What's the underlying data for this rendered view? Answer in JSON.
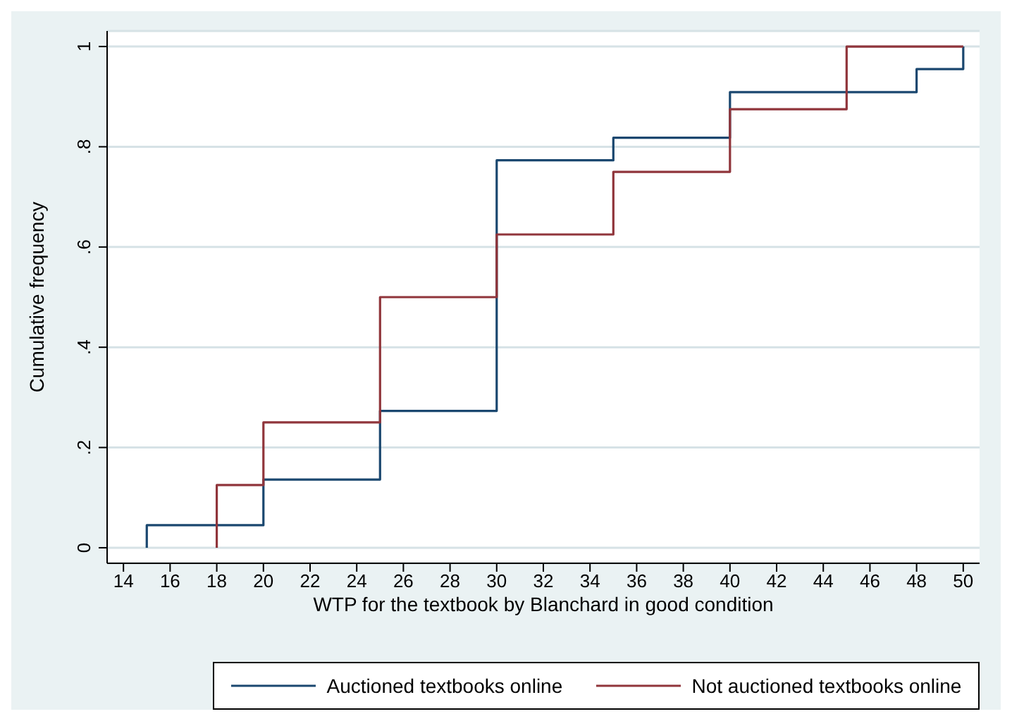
{
  "chart_data": {
    "type": "step",
    "xlabel": "WTP for the textbook by Blanchard in good condition",
    "ylabel": "Cumulative frequency",
    "series": [
      {
        "name": "Auctioned textbooks online",
        "color": "#1a476f",
        "x": [
          15,
          15,
          20,
          25,
          30,
          35,
          40,
          48,
          50
        ],
        "values": [
          0,
          0.045,
          0.136,
          0.273,
          0.773,
          0.818,
          0.909,
          0.955,
          1
        ]
      },
      {
        "name": "Not auctioned textbooks online",
        "color": "#90353b",
        "x": [
          18,
          18,
          20,
          25,
          30,
          35,
          40,
          45,
          50
        ],
        "values": [
          0,
          0.125,
          0.25,
          0.5,
          0.625,
          0.75,
          0.875,
          1,
          1
        ]
      }
    ],
    "xlim": [
      13.3,
      50.7
    ],
    "xticks": [
      14,
      16,
      18,
      20,
      22,
      24,
      26,
      28,
      30,
      32,
      34,
      36,
      38,
      40,
      42,
      44,
      46,
      48,
      50
    ],
    "ylim": [
      -0.031,
      1.031
    ],
    "yticks": [
      {
        "value": 0,
        "label": "0"
      },
      {
        "value": 0.2,
        "label": ".2"
      },
      {
        "value": 0.4,
        "label": ".4"
      },
      {
        "value": 0.6,
        "label": ".6"
      },
      {
        "value": 0.8,
        "label": ".8"
      },
      {
        "value": 1,
        "label": "1"
      }
    ],
    "grid": "y",
    "legend": "bottom",
    "marker": "none",
    "line_style": "solid"
  }
}
